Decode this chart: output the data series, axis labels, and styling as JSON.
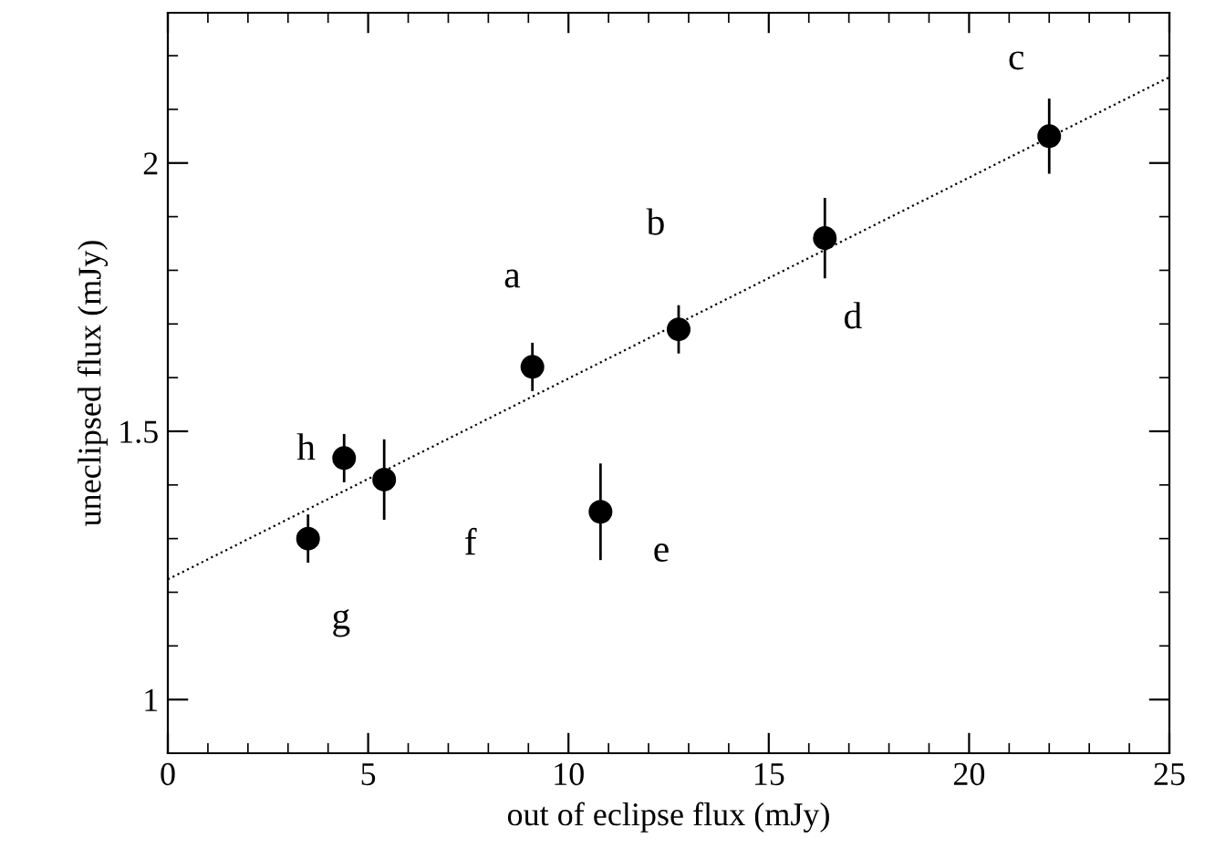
{
  "chart_data": {
    "type": "scatter",
    "xlabel": "out of eclipse flux (mJy)",
    "ylabel": "uneclipsed flux (mJy)",
    "xlim": [
      0,
      25
    ],
    "ylim": [
      0.9,
      2.28
    ],
    "xticks": [
      0,
      5,
      10,
      15,
      20,
      25
    ],
    "yticks": [
      1,
      1.5,
      2
    ],
    "grid": false,
    "legend": false,
    "series": [
      {
        "color": "#000000",
        "marker": "circle",
        "x": [
          3.5,
          4.4,
          5.4,
          9.1,
          10.8,
          12.75,
          16.4,
          22.0
        ],
        "values": [
          1.3,
          1.45,
          1.41,
          1.62,
          1.35,
          1.69,
          1.86,
          2.05
        ],
        "errors": [
          0.045,
          0.045,
          0.075,
          0.045,
          0.09,
          0.045,
          0.075,
          0.07
        ]
      },
      {
        "type": "line",
        "color": "#000000",
        "marker": "none",
        "line_style": "dotted",
        "x": [
          0,
          25
        ],
        "values": [
          1.224,
          2.16
        ]
      }
    ],
    "annotations": [
      {
        "text": "a",
        "x": 9.1,
        "y": 1.62
      },
      {
        "text": "b",
        "x": 12.75,
        "y": 1.69
      },
      {
        "text": "c",
        "x": 22.0,
        "y": 2.05
      },
      {
        "text": "d",
        "x": 16.4,
        "y": 1.86
      },
      {
        "text": "e",
        "x": 10.8,
        "y": 1.35
      },
      {
        "text": "f",
        "x": 5.4,
        "y": 1.41
      },
      {
        "text": "g",
        "x": 3.5,
        "y": 1.3
      },
      {
        "text": "h",
        "x": 4.4,
        "y": 1.45
      }
    ]
  }
}
